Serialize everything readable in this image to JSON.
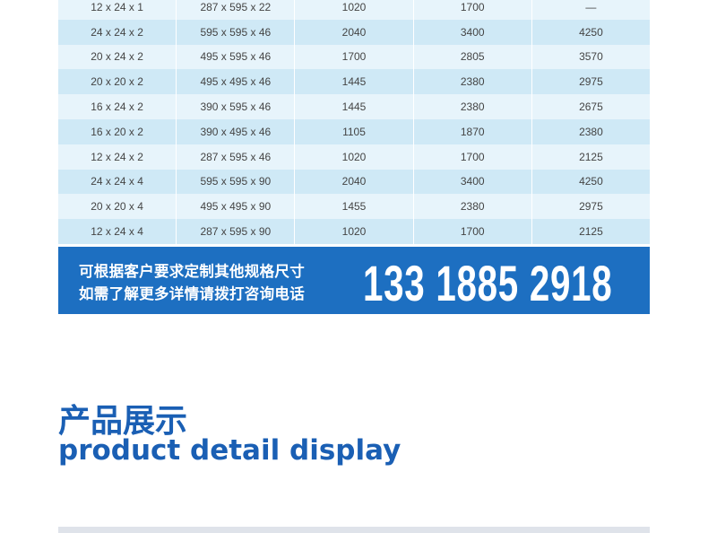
{
  "table": {
    "rows": [
      [
        "12 x 24 x 1",
        "287 x 595 x 22",
        "1020",
        "1700",
        "—"
      ],
      [
        "24 x 24 x 2",
        "595 x 595 x 46",
        "2040",
        "3400",
        "4250"
      ],
      [
        "20 x 24 x 2",
        "495 x 595 x 46",
        "1700",
        "2805",
        "3570"
      ],
      [
        "20 x 20 x 2",
        "495 x 495 x 46",
        "1445",
        "2380",
        "2975"
      ],
      [
        "16 x 24 x 2",
        "390 x 595 x 46",
        "1445",
        "2380",
        "2675"
      ],
      [
        "16 x 20 x 2",
        "390 x 495 x 46",
        "1105",
        "1870",
        "2380"
      ],
      [
        "12 x 24 x 2",
        "287 x 595 x 46",
        "1020",
        "1700",
        "2125"
      ],
      [
        "24 x 24 x 4",
        "595 x 595 x 90",
        "2040",
        "3400",
        "4250"
      ],
      [
        "20 x 20 x 4",
        "495 x 495 x 90",
        "1455",
        "2380",
        "2975"
      ],
      [
        "12 x 24 x 4",
        "287 x 595 x 90",
        "1020",
        "1700",
        "2125"
      ]
    ]
  },
  "banner": {
    "lines": [
      "可根据客户要求定制其他规格尺寸",
      "如需了解更多详情请拨打咨询电话"
    ],
    "phone": "133 1885 2918"
  },
  "section": {
    "title": "产品展示",
    "subtitle": "product detail display"
  }
}
